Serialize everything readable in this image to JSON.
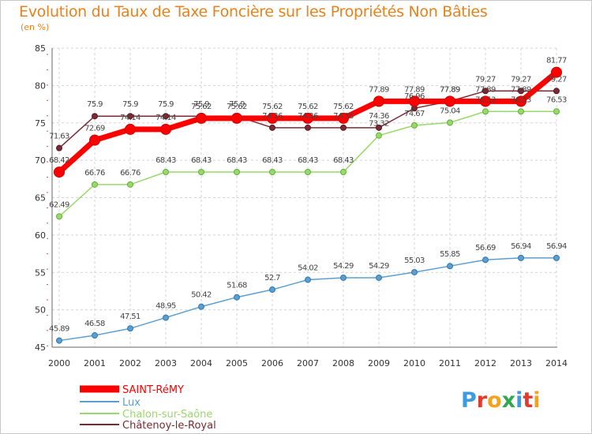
{
  "header": {
    "title": "Evolution du Taux de Taxe Foncière sur les Propriétés Non Bâties",
    "unit": "(en %)"
  },
  "logo": {
    "letters": [
      "P",
      "r",
      "o",
      "x",
      "i",
      "t",
      "i"
    ],
    "colors": [
      "#3d9be0",
      "#e23b2e",
      "#f5a31a",
      "#2fa84f",
      "#3d9be0",
      "#e23b2e",
      "#f5a31a"
    ]
  },
  "chart_data": {
    "type": "line",
    "title": "Evolution du Taux de Taxe Foncière sur les Propriétés Non Bâties",
    "ylabel": "(en %)",
    "xlabel": "",
    "x": [
      "2000",
      "2001",
      "2002",
      "2003",
      "2004",
      "2005",
      "2006",
      "2007",
      "2008",
      "2009",
      "2010",
      "2011",
      "2012",
      "2013",
      "2014"
    ],
    "ylim": [
      45,
      85
    ],
    "yticks": [
      45,
      50,
      55,
      60,
      65,
      70,
      75,
      80,
      85
    ],
    "grid": true,
    "legend": "bottom-left",
    "series": [
      {
        "name": "SAINT-RéMY",
        "color": "#ff0000",
        "values": [
          68.42,
          72.69,
          74.14,
          74.14,
          75.62,
          75.62,
          75.62,
          75.62,
          75.62,
          77.89,
          77.89,
          77.89,
          77.89,
          77.89,
          81.77
        ],
        "labels": [
          "68.42",
          "72.69",
          "74.14",
          "74.14",
          "75.62",
          "75.62",
          "75.62",
          "75.62",
          "75.62",
          "77.89",
          "77.89",
          "77.89",
          "77.89",
          "77.89",
          "81.77"
        ]
      },
      {
        "name": "Lux",
        "color": "#5b9fd0",
        "values": [
          45.89,
          46.58,
          47.51,
          48.95,
          50.42,
          51.68,
          52.7,
          54.02,
          54.29,
          54.29,
          55.03,
          55.85,
          56.69,
          56.94,
          56.94
        ],
        "labels": [
          "45.89",
          "46.58",
          "47.51",
          "48.95",
          "50.42",
          "51.68",
          "52.7",
          "54.02",
          "54.29",
          "54.29",
          "55.03",
          "55.85",
          "56.69",
          "56.94",
          "56.94"
        ]
      },
      {
        "name": "Chalon-sur-Saône",
        "color": "#99d86a",
        "values": [
          62.49,
          66.76,
          66.76,
          68.43,
          68.43,
          68.43,
          68.43,
          68.43,
          68.43,
          73.32,
          74.67,
          75.04,
          76.53,
          76.53,
          76.53
        ],
        "labels": [
          "62.49",
          "66.76",
          "66.76",
          "68.43",
          "68.43",
          "68.43",
          "68.43",
          "68.43",
          "68.43",
          "73.32",
          "74.67",
          "75.04",
          "76.53",
          "76.53",
          "76.53"
        ]
      },
      {
        "name": "Châtenoy-le-Royal",
        "color": "#7a2a33",
        "values": [
          71.63,
          75.9,
          75.9,
          75.9,
          75.9,
          75.9,
          74.36,
          74.36,
          74.36,
          74.36,
          76.96,
          77.89,
          79.27,
          79.27,
          79.27
        ],
        "labels": [
          "71.63",
          "75.9",
          "75.9",
          "75.9",
          "75.9",
          "75.9",
          "74.36",
          "74.36",
          "74.36",
          "74.36",
          "76.96",
          "77.89",
          "79.27",
          "79.27",
          "79.27"
        ]
      }
    ]
  }
}
